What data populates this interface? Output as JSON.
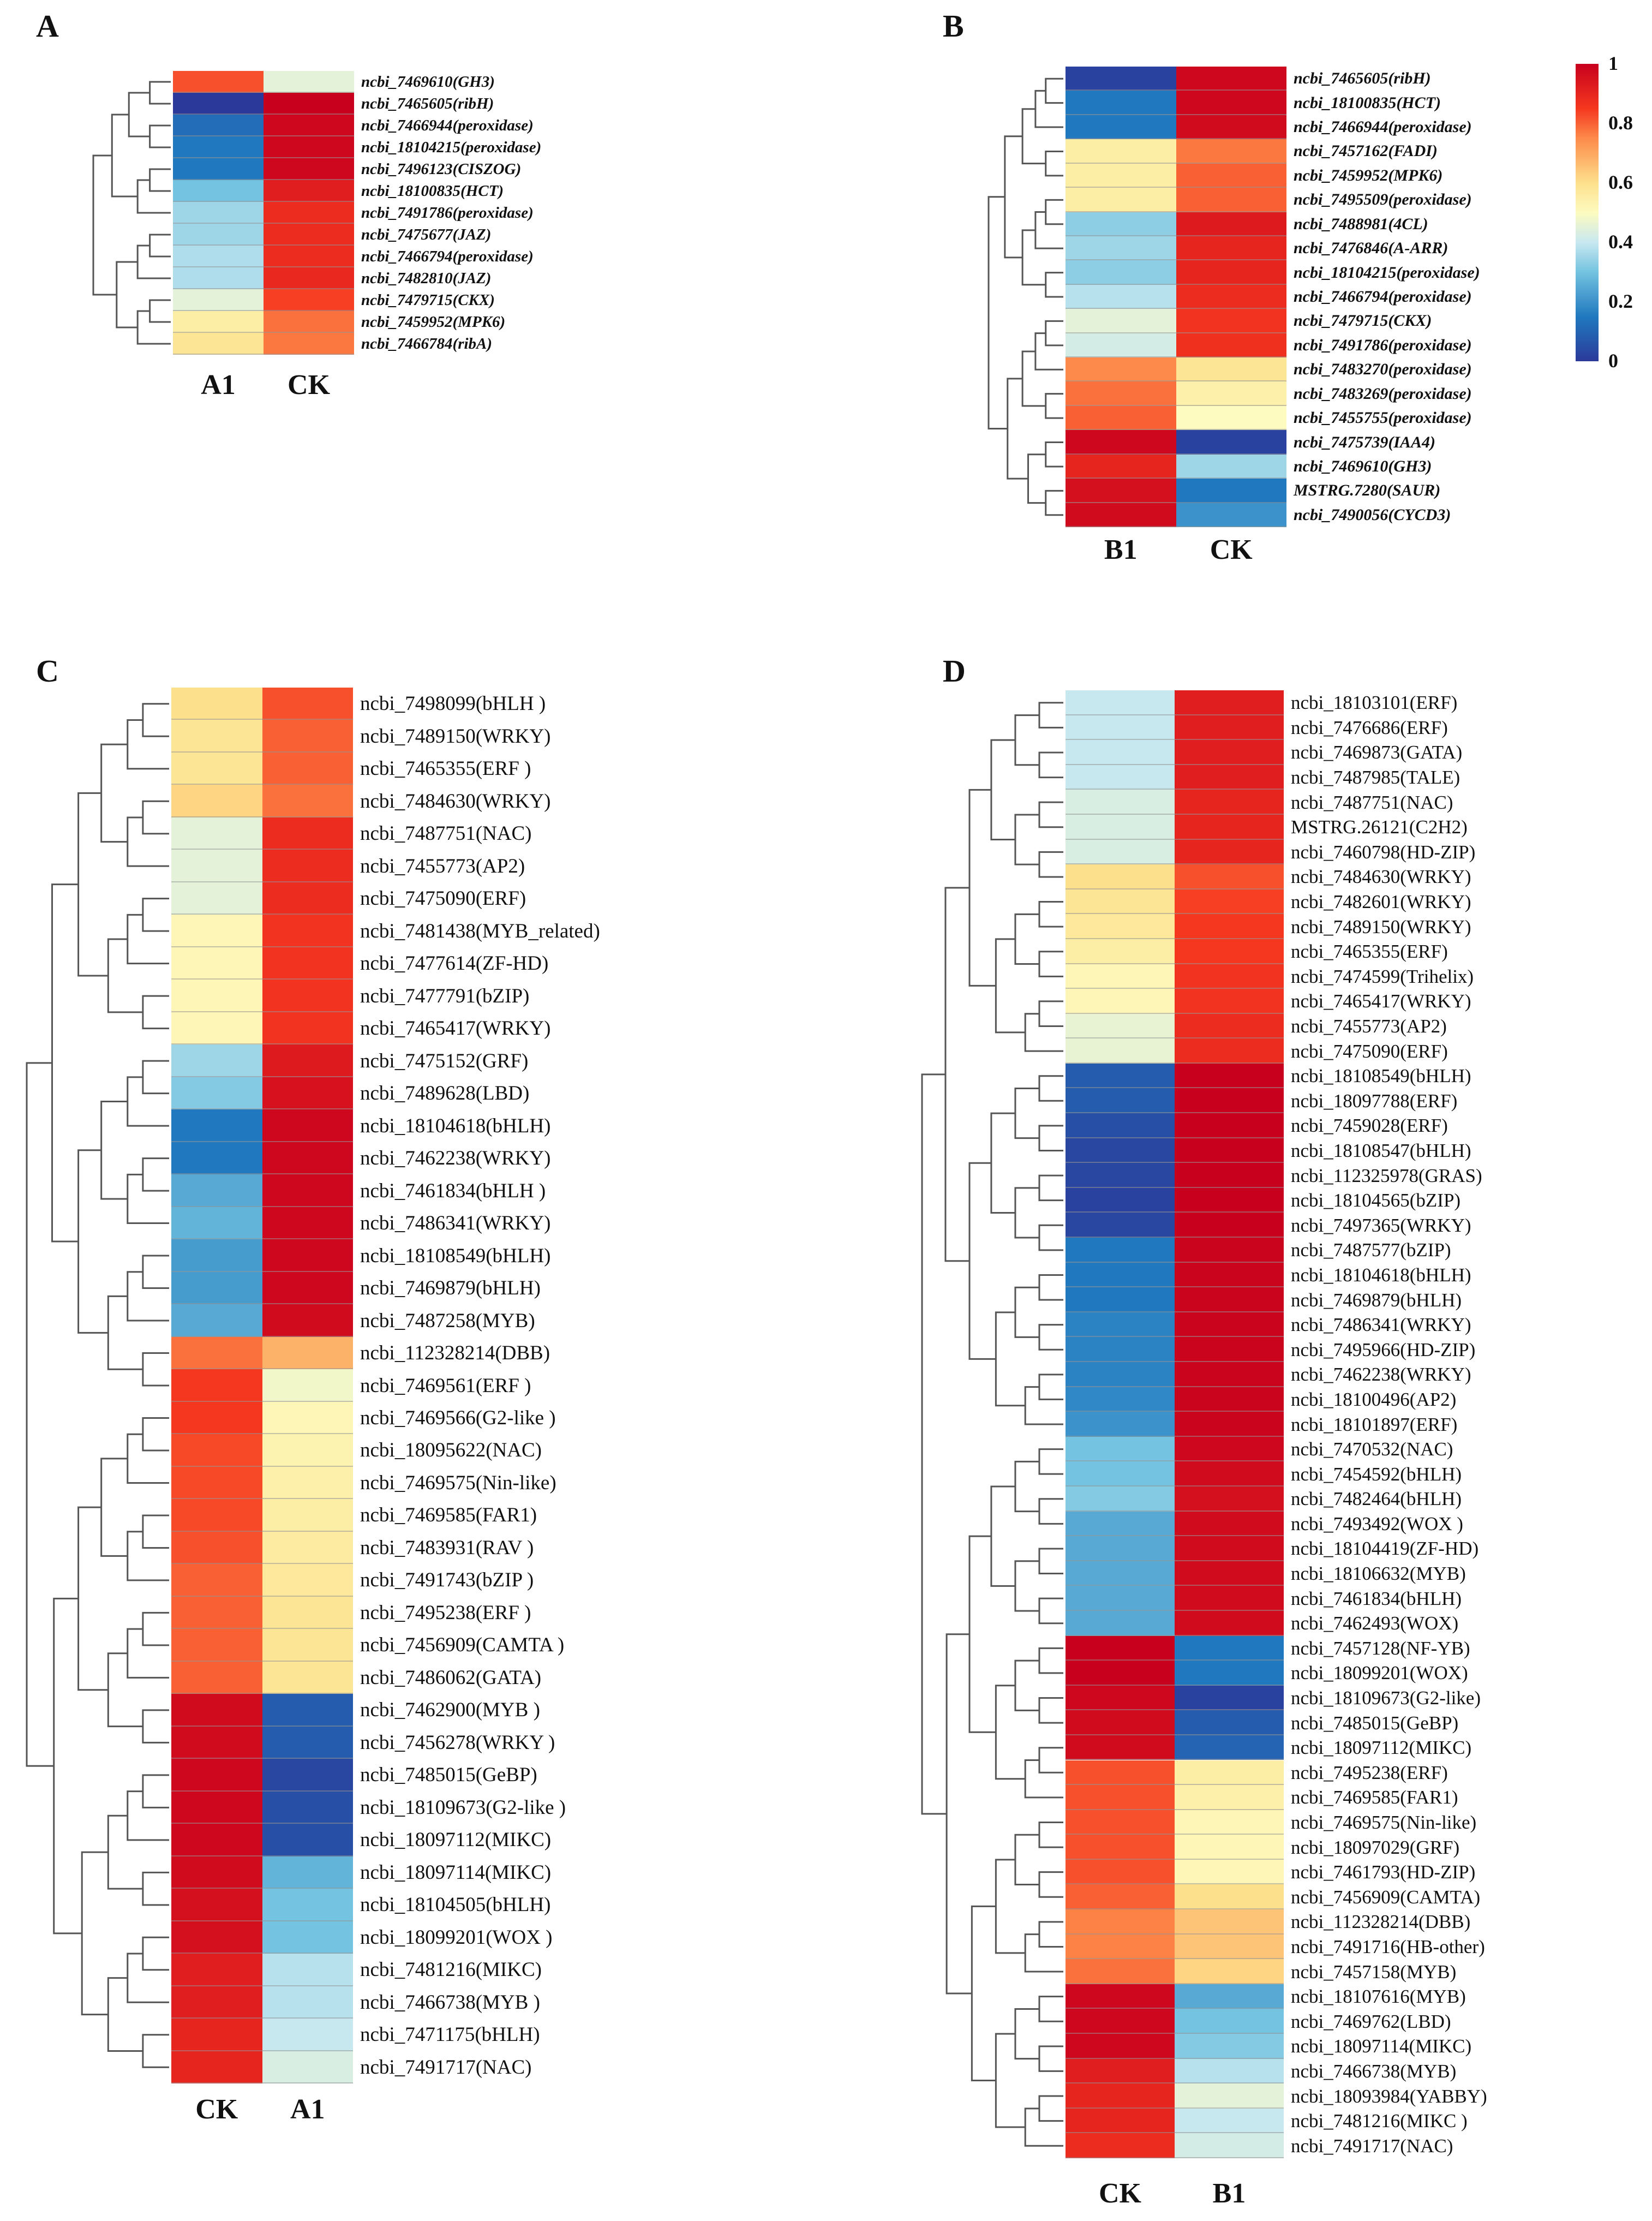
{
  "colors": {
    "scale": [
      "#2b3a9a",
      "#2079bf",
      "#74c3e0",
      "#c8e8f0",
      "#fdfbc0",
      "#fde08c",
      "#fd8a4a",
      "#f5371f",
      "#c8001e"
    ],
    "scale_stops": [
      0,
      0.15,
      0.3,
      0.4,
      0.5,
      0.6,
      0.75,
      0.85,
      1
    ]
  },
  "chart_data": [
    {
      "id": "A",
      "type": "heatmap",
      "panel_label": "A",
      "columns": [
        "A1",
        "CK"
      ],
      "rows": [
        "ncbi_7469610(GH3)",
        "ncbi_7465605(ribH)",
        "ncbi_7466944(peroxidase)",
        "ncbi_18104215(peroxidase)",
        "ncbi_7496123(CISZOG)",
        "ncbi_18100835(HCT)",
        "ncbi_7491786(peroxidase)",
        "ncbi_7475677(JAZ)",
        "ncbi_7466794(peroxidase)",
        "ncbi_7482810(JAZ)",
        "ncbi_7479715(CKX)",
        "ncbi_7459952(MPK6)",
        "ncbi_7466784(ribA)"
      ],
      "values": [
        [
          0.82,
          0.45
        ],
        [
          0.0,
          1.0
        ],
        [
          0.12,
          0.98
        ],
        [
          0.15,
          0.98
        ],
        [
          0.15,
          0.98
        ],
        [
          0.3,
          0.92
        ],
        [
          0.35,
          0.88
        ],
        [
          0.35,
          0.88
        ],
        [
          0.37,
          0.88
        ],
        [
          0.37,
          0.89
        ],
        [
          0.45,
          0.84
        ],
        [
          0.55,
          0.78
        ],
        [
          0.58,
          0.77
        ]
      ]
    },
    {
      "id": "B",
      "type": "heatmap",
      "panel_label": "B",
      "columns": [
        "B1",
        "CK"
      ],
      "rows": [
        "ncbi_7465605(ribH)",
        "ncbi_18100835(HCT)",
        "ncbi_7466944(peroxidase)",
        "ncbi_7457162(FADI)",
        "ncbi_7459952(MPK6)",
        "ncbi_7495509(peroxidase)",
        "ncbi_7488981(4CL)",
        "ncbi_7476846(A-ARR)",
        "ncbi_18104215(peroxidase)",
        "ncbi_7466794(peroxidase)",
        "ncbi_7479715(CKX)",
        "ncbi_7491786(peroxidase)",
        "ncbi_7483270(peroxidase)",
        "ncbi_7483269(peroxidase)",
        "ncbi_7455755(peroxidase)",
        "ncbi_7475739(IAA4)",
        "ncbi_7469610(GH3)",
        "MSTRG.7280(SAUR)",
        "ncbi_7490056(CYCD3)"
      ],
      "values": [
        [
          0.02,
          0.98
        ],
        [
          0.15,
          0.98
        ],
        [
          0.15,
          0.97
        ],
        [
          0.55,
          0.77
        ],
        [
          0.55,
          0.8
        ],
        [
          0.55,
          0.8
        ],
        [
          0.33,
          0.93
        ],
        [
          0.35,
          0.9
        ],
        [
          0.33,
          0.9
        ],
        [
          0.38,
          0.88
        ],
        [
          0.45,
          0.86
        ],
        [
          0.42,
          0.87
        ],
        [
          0.75,
          0.58
        ],
        [
          0.78,
          0.54
        ],
        [
          0.8,
          0.5
        ],
        [
          0.98,
          0.02
        ],
        [
          0.9,
          0.35
        ],
        [
          0.96,
          0.15
        ],
        [
          0.97,
          0.2
        ]
      ],
      "colorbar": {
        "ticks": [
          "1",
          "0.8",
          "0.6",
          "0.4",
          "0.2",
          "0"
        ],
        "range": [
          0,
          1
        ]
      }
    },
    {
      "id": "C",
      "type": "heatmap",
      "panel_label": "C",
      "columns": [
        "CK",
        "A1"
      ],
      "rows": [
        "ncbi_7498099(bHLH )",
        "ncbi_7489150(WRKY)",
        "ncbi_7465355(ERF )",
        "ncbi_7484630(WRKY)",
        "ncbi_7487751(NAC)",
        "ncbi_7455773(AP2)",
        "ncbi_7475090(ERF)",
        "ncbi_7481438(MYB_related)",
        "ncbi_7477614(ZF-HD)",
        "ncbi_7477791(bZIP)",
        "ncbi_7465417(WRKY)",
        "ncbi_7475152(GRF)",
        "ncbi_7489628(LBD)",
        "ncbi_18104618(bHLH)",
        "ncbi_7462238(WRKY)",
        "ncbi_7461834(bHLH )",
        "ncbi_7486341(WRKY)",
        "ncbi_18108549(bHLH)",
        "ncbi_7469879(bHLH)",
        "ncbi_7487258(MYB)",
        "ncbi_112328214(DBB)",
        "ncbi_7469561(ERF )",
        "ncbi_7469566(G2-like )",
        "ncbi_18095622(NAC)",
        "ncbi_7469575(Nin-like)",
        "ncbi_7469585(FAR1)",
        "ncbi_7483931(RAV )",
        "ncbi_7491743(bZIP )",
        "ncbi_7495238(ERF )",
        "ncbi_7456909(CAMTA )",
        "ncbi_7486062(GATA)",
        "ncbi_7462900(MYB )",
        "ncbi_7456278(WRKY )",
        "ncbi_7485015(GeBP)",
        "ncbi_18109673(G2-like )",
        "ncbi_18097112(MIKC)",
        "ncbi_18097114(MIKC)",
        "ncbi_18104505(bHLH)",
        "ncbi_18099201(WOX )",
        "ncbi_7481216(MIKC)",
        "ncbi_7466738(MYB )",
        "ncbi_7471175(bHLH)",
        "ncbi_7491717(NAC)"
      ],
      "values": [
        [
          0.6,
          0.82
        ],
        [
          0.58,
          0.8
        ],
        [
          0.58,
          0.8
        ],
        [
          0.62,
          0.78
        ],
        [
          0.45,
          0.88
        ],
        [
          0.45,
          0.88
        ],
        [
          0.45,
          0.88
        ],
        [
          0.52,
          0.86
        ],
        [
          0.52,
          0.86
        ],
        [
          0.52,
          0.86
        ],
        [
          0.52,
          0.86
        ],
        [
          0.35,
          0.93
        ],
        [
          0.32,
          0.95
        ],
        [
          0.15,
          0.98
        ],
        [
          0.15,
          0.98
        ],
        [
          0.25,
          0.98
        ],
        [
          0.27,
          0.98
        ],
        [
          0.22,
          0.98
        ],
        [
          0.22,
          0.98
        ],
        [
          0.25,
          0.97
        ],
        [
          0.78,
          0.68
        ],
        [
          0.85,
          0.48
        ],
        [
          0.85,
          0.52
        ],
        [
          0.83,
          0.53
        ],
        [
          0.83,
          0.54
        ],
        [
          0.83,
          0.55
        ],
        [
          0.82,
          0.56
        ],
        [
          0.8,
          0.57
        ],
        [
          0.8,
          0.58
        ],
        [
          0.8,
          0.58
        ],
        [
          0.8,
          0.58
        ],
        [
          0.97,
          0.08
        ],
        [
          0.97,
          0.08
        ],
        [
          0.98,
          0.03
        ],
        [
          0.98,
          0.05
        ],
        [
          0.98,
          0.05
        ],
        [
          0.97,
          0.27
        ],
        [
          0.96,
          0.3
        ],
        [
          0.96,
          0.3
        ],
        [
          0.92,
          0.38
        ],
        [
          0.92,
          0.38
        ],
        [
          0.9,
          0.4
        ],
        [
          0.9,
          0.43
        ]
      ]
    },
    {
      "id": "D",
      "type": "heatmap",
      "panel_label": "D",
      "columns": [
        "CK",
        "B1"
      ],
      "rows": [
        "ncbi_18103101(ERF)",
        "ncbi_7476686(ERF)",
        "ncbi_7469873(GATA)",
        "ncbi_7487985(TALE)",
        "ncbi_7487751(NAC)",
        "MSTRG.26121(C2H2)",
        "ncbi_7460798(HD-ZIP)",
        "ncbi_7484630(WRKY)",
        "ncbi_7482601(WRKY)",
        "ncbi_7489150(WRKY)",
        "ncbi_7465355(ERF)",
        "ncbi_7474599(Trihelix)",
        "ncbi_7465417(WRKY)",
        "ncbi_7455773(AP2)",
        "ncbi_7475090(ERF)",
        "ncbi_18108549(bHLH)",
        "ncbi_18097788(ERF)",
        "ncbi_7459028(ERF)",
        "ncbi_18108547(bHLH)",
        "ncbi_112325978(GRAS)",
        "ncbi_18104565(bZIP)",
        "ncbi_7497365(WRKY)",
        "ncbi_7487577(bZIP)",
        "ncbi_18104618(bHLH)",
        "ncbi_7469879(bHLH)",
        "ncbi_7486341(WRKY)",
        "ncbi_7495966(HD-ZIP)",
        "ncbi_7462238(WRKY)",
        "ncbi_18100496(AP2)",
        "ncbi_18101897(ERF)",
        "ncbi_7470532(NAC)",
        "ncbi_7454592(bHLH)",
        "ncbi_7482464(bHLH)",
        "ncbi_7493492(WOX )",
        "ncbi_18104419(ZF-HD)",
        "ncbi_18106632(MYB)",
        "ncbi_7461834(bHLH)",
        "ncbi_7462493(WOX)",
        "ncbi_7457128(NF-YB)",
        "ncbi_18099201(WOX)",
        "ncbi_18109673(G2-like)",
        "ncbi_7485015(GeBP)",
        "ncbi_18097112(MIKC)",
        "ncbi_7495238(ERF)",
        "ncbi_7469585(FAR1)",
        "ncbi_7469575(Nin-like)",
        "ncbi_18097029(GRF)",
        "ncbi_7461793(HD-ZIP)",
        "ncbi_7456909(CAMTA)",
        "ncbi_112328214(DBB)",
        "ncbi_7491716(HB-other)",
        "ncbi_7457158(MYB)",
        "ncbi_18107616(MYB)",
        "ncbi_7469762(LBD)",
        "ncbi_18097114(MIKC)",
        "ncbi_7466738(MYB)",
        "ncbi_18093984(YABBY)",
        "ncbi_7481216(MIKC )",
        "ncbi_7491717(NAC)"
      ],
      "values": [
        [
          0.4,
          0.92
        ],
        [
          0.4,
          0.92
        ],
        [
          0.4,
          0.92
        ],
        [
          0.4,
          0.92
        ],
        [
          0.43,
          0.9
        ],
        [
          0.43,
          0.9
        ],
        [
          0.43,
          0.9
        ],
        [
          0.6,
          0.82
        ],
        [
          0.58,
          0.84
        ],
        [
          0.57,
          0.85
        ],
        [
          0.55,
          0.85
        ],
        [
          0.52,
          0.86
        ],
        [
          0.52,
          0.86
        ],
        [
          0.46,
          0.88
        ],
        [
          0.46,
          0.88
        ],
        [
          0.08,
          1
        ],
        [
          0.08,
          1
        ],
        [
          0.05,
          1
        ],
        [
          0.03,
          1
        ],
        [
          0.03,
          1
        ],
        [
          0.02,
          1
        ],
        [
          0.03,
          1
        ],
        [
          0.15,
          0.99
        ],
        [
          0.15,
          0.99
        ],
        [
          0.15,
          0.99
        ],
        [
          0.17,
          0.99
        ],
        [
          0.17,
          0.99
        ],
        [
          0.17,
          0.99
        ],
        [
          0.18,
          0.99
        ],
        [
          0.2,
          0.99
        ],
        [
          0.3,
          0.98
        ],
        [
          0.3,
          0.97
        ],
        [
          0.32,
          0.96
        ],
        [
          0.25,
          0.97
        ],
        [
          0.25,
          0.97
        ],
        [
          0.25,
          0.97
        ],
        [
          0.25,
          0.97
        ],
        [
          0.25,
          0.97
        ],
        [
          1,
          0.15
        ],
        [
          1,
          0.15
        ],
        [
          0.98,
          0.02
        ],
        [
          0.97,
          0.08
        ],
        [
          0.97,
          0.1
        ],
        [
          0.82,
          0.55
        ],
        [
          0.82,
          0.54
        ],
        [
          0.82,
          0.52
        ],
        [
          0.82,
          0.52
        ],
        [
          0.82,
          0.52
        ],
        [
          0.8,
          0.6
        ],
        [
          0.76,
          0.65
        ],
        [
          0.76,
          0.65
        ],
        [
          0.78,
          0.62
        ],
        [
          0.98,
          0.25
        ],
        [
          0.98,
          0.3
        ],
        [
          0.98,
          0.32
        ],
        [
          0.92,
          0.38
        ],
        [
          0.9,
          0.45
        ],
        [
          0.9,
          0.4
        ],
        [
          0.88,
          0.42
        ]
      ]
    }
  ]
}
